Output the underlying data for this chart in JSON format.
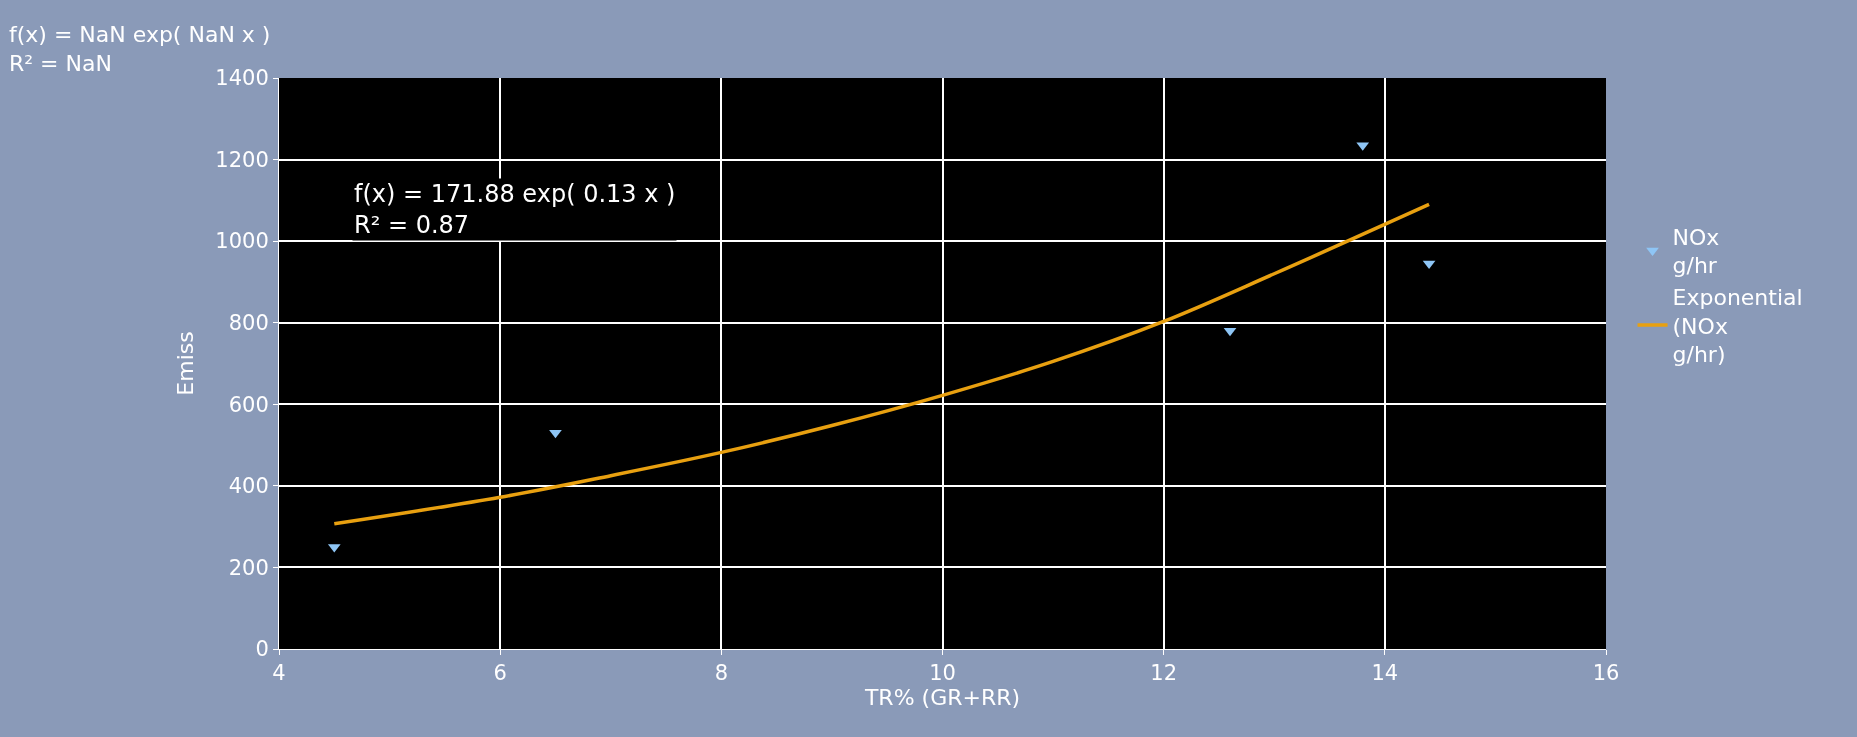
{
  "chart_data": {
    "type": "scatter",
    "xlabel": "TR% (GR+RR)",
    "ylabel": "Emiss",
    "xlim": [
      4,
      16
    ],
    "xticks": [
      4,
      6,
      8,
      10,
      12,
      14,
      16
    ],
    "ylim": [
      0,
      1400
    ],
    "yticks": [
      0,
      200,
      400,
      600,
      800,
      1000,
      1200,
      1400
    ],
    "series": [
      {
        "name": "NOx g/hr",
        "color": "#8ec5f5",
        "marker": "triangle",
        "x": [
          4.5,
          6.5,
          12.6,
          13.8,
          14.4
        ],
        "values": [
          250,
          530,
          780,
          1235,
          945
        ]
      },
      {
        "name": "Exponential (NOx g/hr)",
        "type": "line",
        "color": "#e8a010",
        "line_style": "solid",
        "x": [
          4.5,
          6,
          7,
          8,
          9,
          10,
          11,
          12,
          13,
          14.4
        ],
        "values": [
          307,
          372,
          425,
          482,
          548,
          622,
          705,
          803,
          920,
          1090
        ]
      }
    ],
    "annotations": [
      "f(x) = NaN exp( NaN x )\nR² = NaN",
      "f(x) = 171.88 exp( 0.13 x )\nR² = 0.87"
    ],
    "grid": true,
    "legend": "right"
  }
}
